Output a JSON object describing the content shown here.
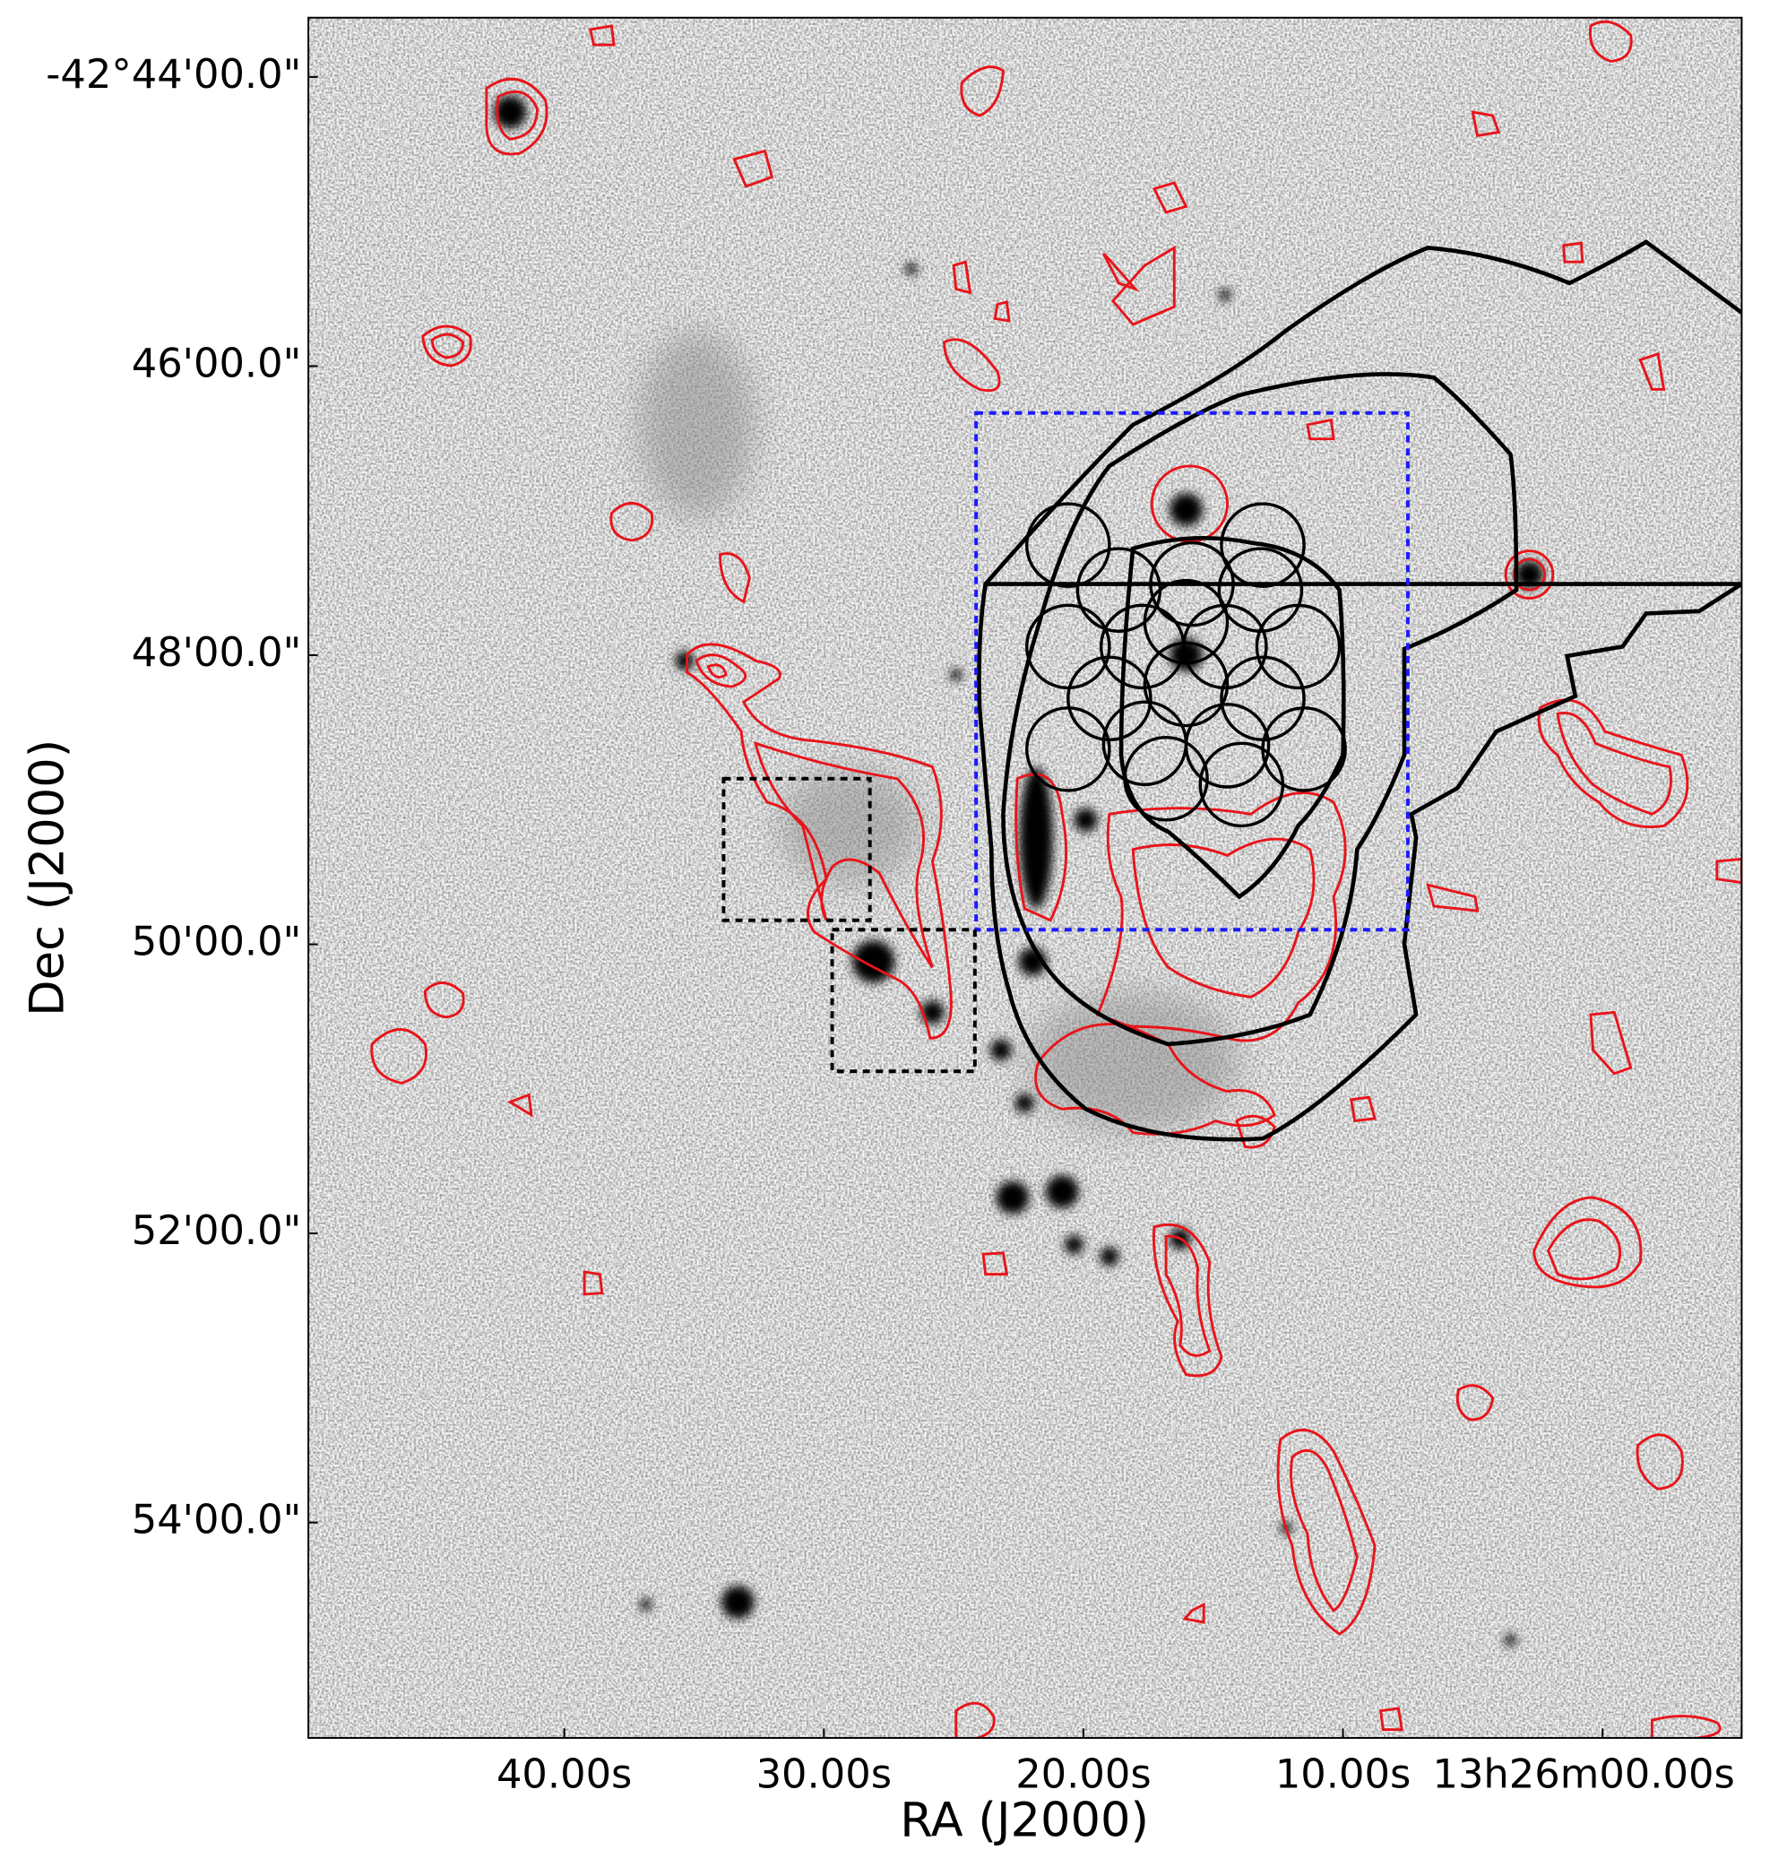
{
  "chart_data": {
    "type": "image",
    "xlabel": "RA (J2000)",
    "ylabel": "Dec (J2000)",
    "xlim": [
      49.86,
      -5.36
    ],
    "ylim": [
      -55.49,
      -43.59
    ],
    "xticks": [
      {
        "value": 40,
        "label": "40.00s"
      },
      {
        "value": 30,
        "label": "30.00s"
      },
      {
        "value": 20,
        "label": "20.00s"
      },
      {
        "value": 10,
        "label": "10.00s"
      },
      {
        "value": 0,
        "label": "13h26m00.00s"
      }
    ],
    "yticks": [
      {
        "value": -44,
        "label": "-42°44'00.0\""
      },
      {
        "value": -46,
        "label": "46'00.0\""
      },
      {
        "value": -48,
        "label": "48'00.0\""
      },
      {
        "value": -50,
        "label": "50'00.0\""
      },
      {
        "value": -52,
        "label": "52'00.0\""
      },
      {
        "value": -54,
        "label": "54'00.0\""
      }
    ]
  }
}
